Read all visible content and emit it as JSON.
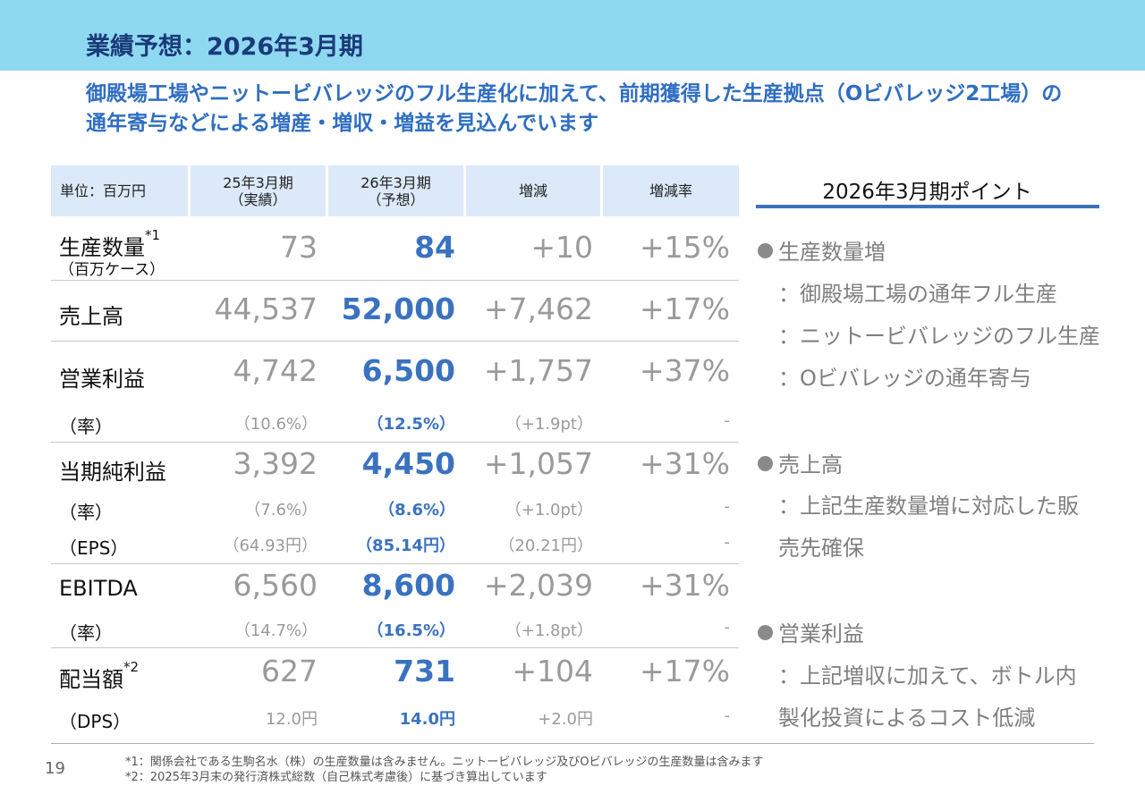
{
  "title": "業績予想：2026年3月期",
  "subtitle": "御殿場工場やニットービバレッジのフル生産化に加えて、前期獲得した生産拠点（Oビバレッジ2工場）の通年寄与などによる増産・増収・増益を見込んでいます",
  "table": {
    "headers": {
      "unit": "単位：百万円",
      "prev_line1": "25年3月期",
      "prev_line2": "（実績）",
      "fc_line1": "26年3月期",
      "fc_line2": "（予想）",
      "diff": "増減",
      "rate": "増減率"
    },
    "rows": {
      "production": {
        "label": "生産数量",
        "sup": "*1",
        "sublabel": "（百万ケース）",
        "prev": "73",
        "fc": "84",
        "diff": "+10",
        "rate": "+15%"
      },
      "sales": {
        "label": "売上高",
        "prev": "44,537",
        "fc": "52,000",
        "diff": "+7,462",
        "rate": "+17%"
      },
      "op_profit": {
        "label": "営業利益",
        "prev": "4,742",
        "fc": "6,500",
        "diff": "+1,757",
        "rate": "+37%"
      },
      "op_rate": {
        "label": "（率）",
        "prev": "（10.6%）",
        "fc": "（12.5%）",
        "diff": "（+1.9pt）",
        "rate": "-"
      },
      "net_income": {
        "label": "当期純利益",
        "prev": "3,392",
        "fc": "4,450",
        "diff": "+1,057",
        "rate": "+31%"
      },
      "net_rate": {
        "label": "（率）",
        "prev": "（7.6%）",
        "fc": "（8.6%）",
        "diff": "（+1.0pt）",
        "rate": "-"
      },
      "eps": {
        "label": "（EPS）",
        "prev": "（64.93円）",
        "fc": "（85.14円）",
        "diff": "（20.21円）",
        "rate": "-"
      },
      "ebitda": {
        "label": "EBITDA",
        "prev": "6,560",
        "fc": "8,600",
        "diff": "+2,039",
        "rate": "+31%"
      },
      "ebitda_rate": {
        "label": "（率）",
        "prev": "（14.7%）",
        "fc": "（16.5%）",
        "diff": "（+1.8pt）",
        "rate": "-"
      },
      "dividend": {
        "label": "配当額",
        "sup": "*2",
        "prev": "627",
        "fc": "731",
        "diff": "+104",
        "rate": "+17%"
      },
      "dps": {
        "label": "（DPS）",
        "prev": "12.0円",
        "fc": "14.0円",
        "diff": "+2.0円",
        "rate": "-"
      }
    }
  },
  "points": {
    "title": "2026年3月期ポイント",
    "p1_head": "生産数量増",
    "p1_l1": "：御殿場工場の通年フル生産",
    "p1_l2": "：ニットービバレッジのフル生産",
    "p1_l3": "：Oビバレッジの通年寄与",
    "p2_head": "売上高",
    "p2_l1": "：上記生産数量増に対応した販",
    "p2_l2": "売先確保",
    "p3_head": "営業利益",
    "p3_l1": "：上記増収に加えて、ボトル内",
    "p3_l2": "製化投資によるコスト低減"
  },
  "footnotes": {
    "n1": "*1：関係会社である生駒名水（株）の生産数量は含みません。ニットービバレッジ及びOビバレッジの生産数量は含みます",
    "n2": "*2：2025年3月末の発行済株式総数（自己株式考慮後）に基づき算出しています"
  },
  "page_number": "19",
  "colors": {
    "header_bg": "#8fd9f0",
    "title": "#1a3a7a",
    "accent": "#3a72c0",
    "table_header_bg": "#dce9f8",
    "muted": "#9a9a9a"
  }
}
